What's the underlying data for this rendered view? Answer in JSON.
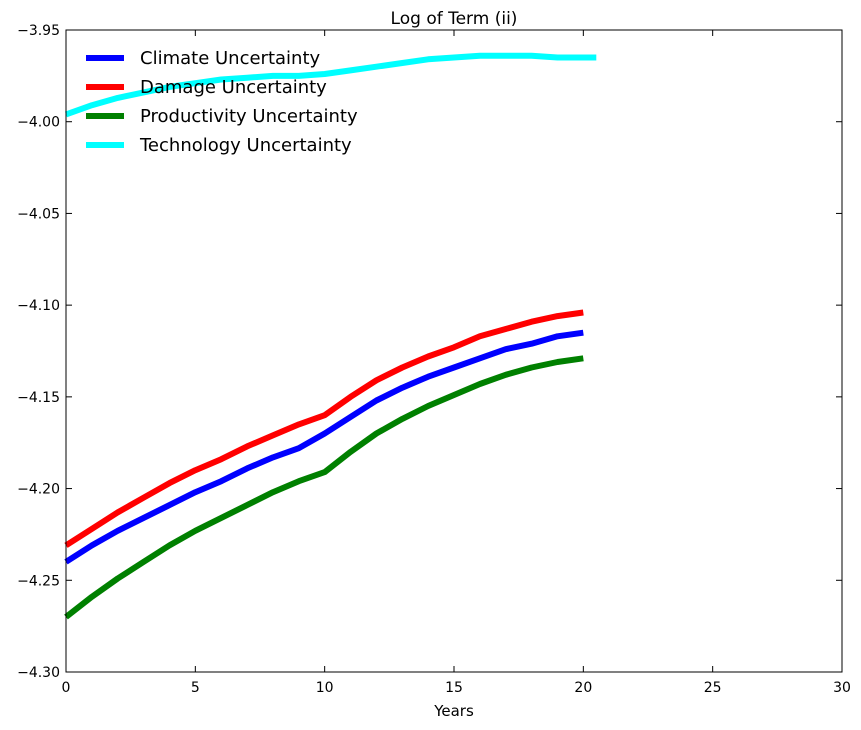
{
  "chart_data": {
    "type": "line",
    "title": "Log of Term (ii)",
    "xlabel": "Years",
    "ylabel": "",
    "xlim": [
      0,
      30
    ],
    "ylim": [
      -4.3,
      -3.95
    ],
    "xticks": [
      0,
      5,
      10,
      15,
      20,
      25,
      30
    ],
    "yticks": [
      -4.3,
      -4.25,
      -4.2,
      -4.15,
      -4.1,
      -4.05,
      -4.0,
      -3.95
    ],
    "xtick_labels": [
      "0",
      "5",
      "10",
      "15",
      "20",
      "25",
      "30"
    ],
    "ytick_labels": [
      "−4.30",
      "−4.25",
      "−4.20",
      "−4.15",
      "−4.10",
      "−4.05",
      "−4.00",
      "−3.95"
    ],
    "grid": false,
    "legend_position": "top-left",
    "series": [
      {
        "name": "Climate Uncertainty",
        "color": "#0000ff",
        "x": [
          0,
          1,
          2,
          3,
          4,
          5,
          6,
          7,
          8,
          9,
          10,
          11,
          12,
          13,
          14,
          15,
          16,
          17,
          18,
          19,
          20
        ],
        "y": [
          -4.24,
          -4.231,
          -4.223,
          -4.216,
          -4.209,
          -4.202,
          -4.196,
          -4.189,
          -4.183,
          -4.178,
          -4.17,
          -4.161,
          -4.152,
          -4.145,
          -4.139,
          -4.134,
          -4.129,
          -4.124,
          -4.121,
          -4.117,
          -4.115
        ]
      },
      {
        "name": "Damage Uncertainty",
        "color": "#ff0000",
        "x": [
          0,
          1,
          2,
          3,
          4,
          5,
          6,
          7,
          8,
          9,
          10,
          11,
          12,
          13,
          14,
          15,
          16,
          17,
          18,
          19,
          20
        ],
        "y": [
          -4.231,
          -4.222,
          -4.213,
          -4.205,
          -4.197,
          -4.19,
          -4.184,
          -4.177,
          -4.171,
          -4.165,
          -4.16,
          -4.15,
          -4.141,
          -4.134,
          -4.128,
          -4.123,
          -4.117,
          -4.113,
          -4.109,
          -4.106,
          -4.104
        ]
      },
      {
        "name": "Productivity Uncertainty",
        "color": "#008000",
        "x": [
          0,
          1,
          2,
          3,
          4,
          5,
          6,
          7,
          8,
          9,
          10,
          11,
          12,
          13,
          14,
          15,
          16,
          17,
          18,
          19,
          20
        ],
        "y": [
          -4.27,
          -4.259,
          -4.249,
          -4.24,
          -4.231,
          -4.223,
          -4.216,
          -4.209,
          -4.202,
          -4.196,
          -4.191,
          -4.18,
          -4.17,
          -4.162,
          -4.155,
          -4.149,
          -4.143,
          -4.138,
          -4.134,
          -4.131,
          -4.129
        ]
      },
      {
        "name": "Technology Uncertainty",
        "color": "#00ffff",
        "x": [
          0,
          1,
          2,
          3,
          4,
          5,
          6,
          7,
          8,
          9,
          10,
          11,
          12,
          13,
          14,
          15,
          16,
          17,
          18,
          19,
          20,
          20.5
        ],
        "y": [
          -3.996,
          -3.991,
          -3.987,
          -3.984,
          -3.981,
          -3.979,
          -3.977,
          -3.976,
          -3.975,
          -3.975,
          -3.974,
          -3.972,
          -3.97,
          -3.968,
          -3.966,
          -3.965,
          -3.964,
          -3.964,
          -3.964,
          -3.965,
          -3.965,
          -3.965
        ]
      }
    ]
  }
}
